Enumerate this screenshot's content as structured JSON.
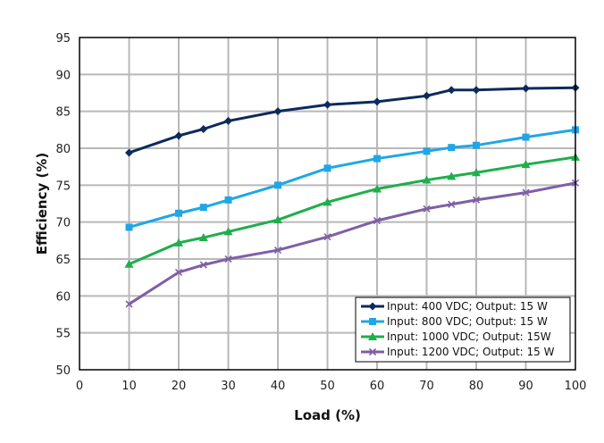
{
  "chart_data": {
    "type": "line",
    "title": "",
    "xlabel": "Load (%)",
    "ylabel": "Efficiency (%)",
    "xlim": [
      0,
      100
    ],
    "ylim": [
      50,
      95
    ],
    "xticks": [
      0,
      10,
      20,
      30,
      40,
      50,
      60,
      70,
      80,
      90,
      100
    ],
    "yticks": [
      50,
      55,
      60,
      65,
      70,
      75,
      80,
      85,
      90,
      95
    ],
    "grid": true,
    "legend_position": "bottom-right",
    "series": [
      {
        "name": "Input: 400 VDC; Output: 15 W",
        "color": "#0d2a5c",
        "marker": "diamond",
        "x": [
          10,
          20,
          25,
          30,
          40,
          50,
          60,
          70,
          75,
          80,
          90,
          100
        ],
        "values": [
          79.4,
          81.7,
          82.6,
          83.7,
          85.0,
          85.9,
          86.3,
          87.1,
          87.9,
          87.9,
          88.1,
          88.2
        ]
      },
      {
        "name": "Input: 800 VDC; Output: 15 W",
        "color": "#1ea7e6",
        "marker": "square",
        "x": [
          10,
          20,
          25,
          30,
          40,
          50,
          60,
          70,
          75,
          80,
          90,
          100
        ],
        "values": [
          69.3,
          71.2,
          72.0,
          73.0,
          75.0,
          77.3,
          78.6,
          79.6,
          80.1,
          80.4,
          81.5,
          82.5
        ]
      },
      {
        "name": "Input: 1000 VDC; Output: 15W",
        "color": "#1fae4b",
        "marker": "triangle",
        "x": [
          10,
          20,
          25,
          30,
          40,
          50,
          60,
          70,
          75,
          80,
          90,
          100
        ],
        "values": [
          64.3,
          67.2,
          67.9,
          68.7,
          70.3,
          72.7,
          74.5,
          75.7,
          76.2,
          76.7,
          77.8,
          78.8
        ]
      },
      {
        "name": "Input: 1200 VDC; Output: 15 W",
        "color": "#7f5fa5",
        "marker": "x",
        "x": [
          10,
          20,
          25,
          30,
          40,
          50,
          60,
          70,
          75,
          80,
          90,
          100
        ],
        "values": [
          58.9,
          63.2,
          64.2,
          65.0,
          66.2,
          68.0,
          70.2,
          71.8,
          72.4,
          73.0,
          74.0,
          75.3
        ]
      }
    ]
  }
}
